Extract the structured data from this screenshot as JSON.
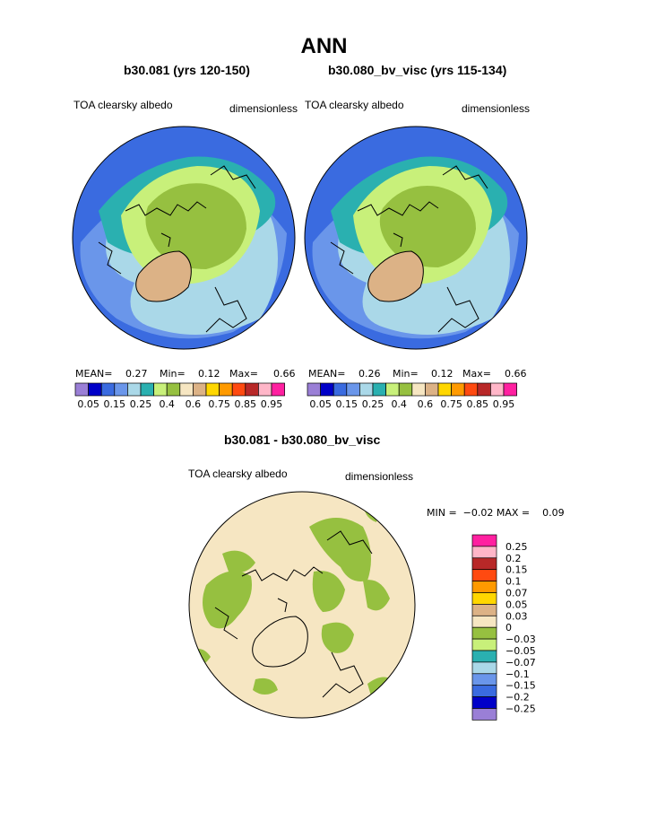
{
  "figure": {
    "title": "ANN",
    "panels": [
      {
        "case_title": "b30.081 (yrs 120-150)",
        "variable_label": "TOA clearsky albedo",
        "units_label": "dimensionless",
        "stats": {
          "mean_label": "MEAN=",
          "mean_value": "0.27",
          "min_label": "Min=",
          "min_value": "0.12",
          "max_label": "Max=",
          "max_value": "0.66"
        }
      },
      {
        "case_title": "b30.080_bv_visc (yrs 115-134)",
        "variable_label": "TOA clearsky albedo",
        "units_label": "dimensionless",
        "stats": {
          "mean_label": "MEAN=",
          "mean_value": "0.26",
          "min_label": "Min=",
          "min_value": "0.12",
          "max_label": "Max=",
          "max_value": "0.66"
        }
      }
    ],
    "diff_panel": {
      "title": "b30.081 - b30.080_bv_visc",
      "variable_label": "TOA clearsky albedo",
      "units_label": "dimensionless",
      "stats_text": "MIN =  −0.02 MAX =    0.09"
    }
  },
  "chart_data": [
    {
      "type": "heatmap",
      "projection": "north polar stereographic",
      "title": "b30.081 (yrs 120-150)",
      "variable": "TOA clearsky albedo",
      "units": "dimensionless",
      "stats": {
        "mean": 0.27,
        "min": 0.12,
        "max": 0.66
      },
      "colorbar": {
        "orientation": "horizontal",
        "levels": [
          0.05,
          0.15,
          0.25,
          0.4,
          0.6,
          0.75,
          0.85,
          0.95
        ],
        "colors": [
          "#9a7fd6",
          "#0000c8",
          "#3a6be0",
          "#6a96ea",
          "#aad8e8",
          "#2ab0b0",
          "#c8f07a",
          "#96c040",
          "#f6e6c2",
          "#dcb286",
          "#ffd700",
          "#ff9a00",
          "#ff4a10",
          "#b82828",
          "#ffb6c8",
          "#ff20a0"
        ]
      }
    },
    {
      "type": "heatmap",
      "projection": "north polar stereographic",
      "title": "b30.080_bv_visc (yrs 115-134)",
      "variable": "TOA clearsky albedo",
      "units": "dimensionless",
      "stats": {
        "mean": 0.26,
        "min": 0.12,
        "max": 0.66
      },
      "colorbar": {
        "orientation": "horizontal",
        "levels": [
          0.05,
          0.15,
          0.25,
          0.4,
          0.6,
          0.75,
          0.85,
          0.95
        ],
        "colors": [
          "#9a7fd6",
          "#0000c8",
          "#3a6be0",
          "#6a96ea",
          "#aad8e8",
          "#2ab0b0",
          "#c8f07a",
          "#96c040",
          "#f6e6c2",
          "#dcb286",
          "#ffd700",
          "#ff9a00",
          "#ff4a10",
          "#b82828",
          "#ffb6c8",
          "#ff20a0"
        ]
      }
    },
    {
      "type": "heatmap",
      "projection": "north polar stereographic",
      "title": "b30.081 - b30.080_bv_visc",
      "variable": "TOA clearsky albedo",
      "units": "dimensionless",
      "stats": {
        "min": -0.02,
        "max": 0.09
      },
      "colorbar": {
        "orientation": "vertical",
        "labels": [
          "0.25",
          "0.2",
          "0.15",
          "0.1",
          "0.07",
          "0.05",
          "0.03",
          "0",
          "−0.03",
          "−0.05",
          "−0.07",
          "−0.1",
          "−0.15",
          "−0.2",
          "−0.25"
        ],
        "colors": [
          "#ff20a0",
          "#ffb6c8",
          "#b82828",
          "#ff4a10",
          "#ff9a00",
          "#ffd700",
          "#dcb286",
          "#f6e6c2",
          "#96c040",
          "#c8f07a",
          "#2ab0b0",
          "#aad8e8",
          "#6a96ea",
          "#3a6be0",
          "#0000c8",
          "#9a7fd6"
        ]
      }
    }
  ]
}
